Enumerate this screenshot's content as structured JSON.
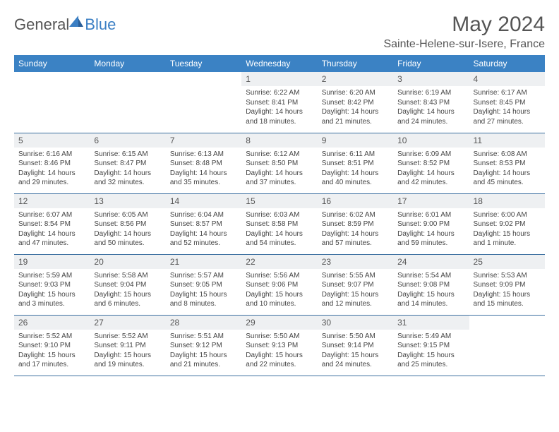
{
  "logo": {
    "general": "General",
    "blue": "Blue"
  },
  "title": "May 2024",
  "location": "Sainte-Helene-sur-Isere, France",
  "colors": {
    "header_bg": "#3b82c4",
    "header_text": "#ffffff",
    "daynum_bg": "#eef0f2",
    "border": "#3b6fa0",
    "logo_blue": "#3b7fc4",
    "title_gray": "#555555"
  },
  "dayNames": [
    "Sunday",
    "Monday",
    "Tuesday",
    "Wednesday",
    "Thursday",
    "Friday",
    "Saturday"
  ],
  "weeks": [
    [
      null,
      null,
      null,
      {
        "d": "1",
        "sr": "6:22 AM",
        "ss": "8:41 PM",
        "dl": "14 hours and 18 minutes."
      },
      {
        "d": "2",
        "sr": "6:20 AM",
        "ss": "8:42 PM",
        "dl": "14 hours and 21 minutes."
      },
      {
        "d": "3",
        "sr": "6:19 AM",
        "ss": "8:43 PM",
        "dl": "14 hours and 24 minutes."
      },
      {
        "d": "4",
        "sr": "6:17 AM",
        "ss": "8:45 PM",
        "dl": "14 hours and 27 minutes."
      }
    ],
    [
      {
        "d": "5",
        "sr": "6:16 AM",
        "ss": "8:46 PM",
        "dl": "14 hours and 29 minutes."
      },
      {
        "d": "6",
        "sr": "6:15 AM",
        "ss": "8:47 PM",
        "dl": "14 hours and 32 minutes."
      },
      {
        "d": "7",
        "sr": "6:13 AM",
        "ss": "8:48 PM",
        "dl": "14 hours and 35 minutes."
      },
      {
        "d": "8",
        "sr": "6:12 AM",
        "ss": "8:50 PM",
        "dl": "14 hours and 37 minutes."
      },
      {
        "d": "9",
        "sr": "6:11 AM",
        "ss": "8:51 PM",
        "dl": "14 hours and 40 minutes."
      },
      {
        "d": "10",
        "sr": "6:09 AM",
        "ss": "8:52 PM",
        "dl": "14 hours and 42 minutes."
      },
      {
        "d": "11",
        "sr": "6:08 AM",
        "ss": "8:53 PM",
        "dl": "14 hours and 45 minutes."
      }
    ],
    [
      {
        "d": "12",
        "sr": "6:07 AM",
        "ss": "8:54 PM",
        "dl": "14 hours and 47 minutes."
      },
      {
        "d": "13",
        "sr": "6:05 AM",
        "ss": "8:56 PM",
        "dl": "14 hours and 50 minutes."
      },
      {
        "d": "14",
        "sr": "6:04 AM",
        "ss": "8:57 PM",
        "dl": "14 hours and 52 minutes."
      },
      {
        "d": "15",
        "sr": "6:03 AM",
        "ss": "8:58 PM",
        "dl": "14 hours and 54 minutes."
      },
      {
        "d": "16",
        "sr": "6:02 AM",
        "ss": "8:59 PM",
        "dl": "14 hours and 57 minutes."
      },
      {
        "d": "17",
        "sr": "6:01 AM",
        "ss": "9:00 PM",
        "dl": "14 hours and 59 minutes."
      },
      {
        "d": "18",
        "sr": "6:00 AM",
        "ss": "9:02 PM",
        "dl": "15 hours and 1 minute."
      }
    ],
    [
      {
        "d": "19",
        "sr": "5:59 AM",
        "ss": "9:03 PM",
        "dl": "15 hours and 3 minutes."
      },
      {
        "d": "20",
        "sr": "5:58 AM",
        "ss": "9:04 PM",
        "dl": "15 hours and 6 minutes."
      },
      {
        "d": "21",
        "sr": "5:57 AM",
        "ss": "9:05 PM",
        "dl": "15 hours and 8 minutes."
      },
      {
        "d": "22",
        "sr": "5:56 AM",
        "ss": "9:06 PM",
        "dl": "15 hours and 10 minutes."
      },
      {
        "d": "23",
        "sr": "5:55 AM",
        "ss": "9:07 PM",
        "dl": "15 hours and 12 minutes."
      },
      {
        "d": "24",
        "sr": "5:54 AM",
        "ss": "9:08 PM",
        "dl": "15 hours and 14 minutes."
      },
      {
        "d": "25",
        "sr": "5:53 AM",
        "ss": "9:09 PM",
        "dl": "15 hours and 15 minutes."
      }
    ],
    [
      {
        "d": "26",
        "sr": "5:52 AM",
        "ss": "9:10 PM",
        "dl": "15 hours and 17 minutes."
      },
      {
        "d": "27",
        "sr": "5:52 AM",
        "ss": "9:11 PM",
        "dl": "15 hours and 19 minutes."
      },
      {
        "d": "28",
        "sr": "5:51 AM",
        "ss": "9:12 PM",
        "dl": "15 hours and 21 minutes."
      },
      {
        "d": "29",
        "sr": "5:50 AM",
        "ss": "9:13 PM",
        "dl": "15 hours and 22 minutes."
      },
      {
        "d": "30",
        "sr": "5:50 AM",
        "ss": "9:14 PM",
        "dl": "15 hours and 24 minutes."
      },
      {
        "d": "31",
        "sr": "5:49 AM",
        "ss": "9:15 PM",
        "dl": "15 hours and 25 minutes."
      },
      null
    ]
  ],
  "labels": {
    "sunrise": "Sunrise:",
    "sunset": "Sunset:",
    "daylight": "Daylight:"
  }
}
